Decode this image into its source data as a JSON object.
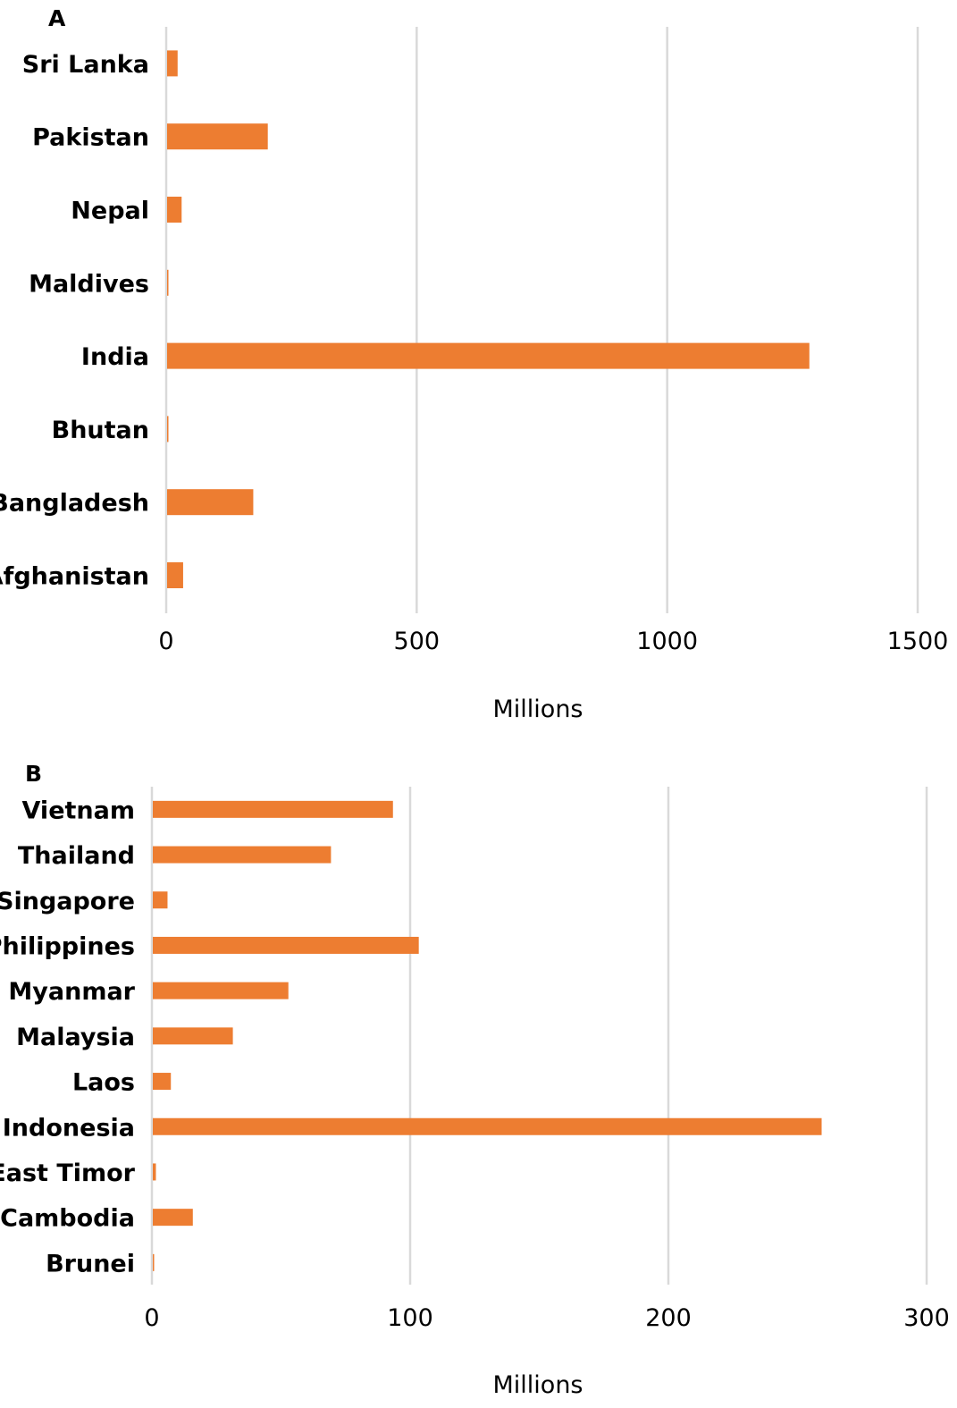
{
  "chart_data": [
    {
      "panel": "A",
      "type": "bar",
      "orientation": "horizontal",
      "categories": [
        "Sri Lanka",
        "Pakistan",
        "Nepal",
        "Maldives",
        "India",
        "Bhutan",
        "Bangladesh",
        "Afghanistan"
      ],
      "values": [
        21,
        201,
        29,
        0.4,
        1282,
        0.8,
        172,
        32
      ],
      "xlim": [
        0,
        1500
      ],
      "xticks": [
        "0",
        "500",
        "1000",
        "1500"
      ],
      "xlabel": "Millions",
      "ylabel": "",
      "title": "",
      "grid": true,
      "legend": false,
      "color": "#ED7D31"
    },
    {
      "panel": "B",
      "type": "bar",
      "orientation": "horizontal",
      "categories": [
        "Vietnam",
        "Thailand",
        "Singapore",
        "Philippines",
        "Myanmar",
        "Malaysia",
        "Laos",
        "Indonesia",
        "East Timor",
        "Cambodia",
        "Brunei"
      ],
      "values": [
        93,
        69,
        5.7,
        103,
        52.5,
        31,
        7,
        259,
        1.2,
        15.5,
        0.4
      ],
      "xlim": [
        0,
        300
      ],
      "xticks": [
        "0",
        "100",
        "200",
        "300"
      ],
      "xlabel": "Millions",
      "ylabel": "",
      "title": "",
      "grid": true,
      "legend": false,
      "color": "#ED7D31"
    }
  ]
}
